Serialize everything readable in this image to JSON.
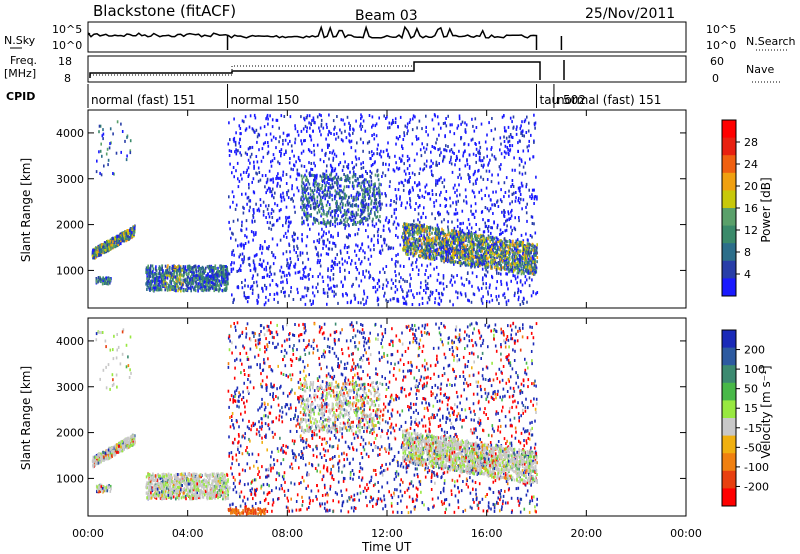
{
  "header": {
    "station": "Blackstone (fitACF)",
    "beam": "Beam 03",
    "date": "25/Nov/2011"
  },
  "params": {
    "nsky_label": "N.Sky",
    "nsearch_label": "N.Search",
    "freq_label": "Freq.",
    "freq_unit": "[MHz]",
    "nave_label": "Nave",
    "cpid_label": "CPID",
    "noise_ticks": [
      "10^5",
      "10^0"
    ],
    "freq_ticks": [
      "18",
      "8"
    ],
    "nave_ticks": [
      "60",
      "0"
    ]
  },
  "cpid_segments": [
    {
      "label": "normal (fast) 151",
      "start_hour": 0.0,
      "end_hour": 5.6
    },
    {
      "label": "normal 150",
      "start_hour": 5.6,
      "end_hour": 18.0
    },
    {
      "label": "tau 502",
      "start_hour": 18.0,
      "end_hour": 18.7
    },
    {
      "label": "normal (fast) 151",
      "start_hour": 18.7,
      "end_hour": 24.0
    }
  ],
  "power_colorbar": {
    "label": "Power [dB]",
    "ticks": [
      "28",
      "24",
      "20",
      "16",
      "12",
      "8",
      "4"
    ],
    "colors": [
      "#1a1aff",
      "#283ea8",
      "#2c6e8a",
      "#3a8a6a",
      "#5aa06a",
      "#c8c80a",
      "#f0a010",
      "#f06010",
      "#e82010",
      "#ff0000"
    ]
  },
  "velocity_colorbar": {
    "label": "Velocity [m s⁻¹]",
    "ticks": [
      "200",
      "100",
      "50",
      "15",
      "-15",
      "-50",
      "-100",
      "-200"
    ],
    "colors": [
      "#1a2ab8",
      "#2d5aa0",
      "#3c8a70",
      "#48b848",
      "#98e840",
      "#c8c8c8",
      "#f0b010",
      "#f08010",
      "#e84010",
      "#ff0000"
    ]
  },
  "chart_data": [
    {
      "type": "heatmap",
      "panel": "power",
      "ylabel": "Slant Range [km]",
      "xlabel": "Time UT",
      "x_ticks": [
        "00:00",
        "04:00",
        "08:00",
        "12:00",
        "16:00",
        "20:00",
        "00:00"
      ],
      "y_ticks": [
        "1000",
        "2000",
        "3000",
        "4000"
      ],
      "xlim_hours": [
        0,
        24
      ],
      "ylim_km": [
        180,
        4500
      ],
      "scatter_regions": [
        {
          "t0": 0.2,
          "t1": 1.8,
          "r0": 1250,
          "r1": 1800,
          "power": "mid"
        },
        {
          "t0": 2.2,
          "t1": 5.5,
          "r0": 500,
          "r1": 1100,
          "power": "low"
        },
        {
          "t0": 5.6,
          "t1": 18.0,
          "r0": 200,
          "r1": 4400,
          "power": "low-sparse"
        },
        {
          "t0": 12.5,
          "t1": 18.0,
          "r0": 800,
          "r1": 1800,
          "power": "mid"
        },
        {
          "t0": 7.5,
          "t1": 11.5,
          "r0": 2000,
          "r1": 3200,
          "power": "low"
        }
      ]
    },
    {
      "type": "heatmap",
      "panel": "velocity",
      "ylabel": "Slant Range [km]",
      "xlabel": "Time UT",
      "x_ticks": [
        "00:00",
        "04:00",
        "08:00",
        "12:00",
        "16:00",
        "20:00",
        "00:00"
      ],
      "y_ticks": [
        "1000",
        "2000",
        "3000",
        "4000"
      ],
      "xlim_hours": [
        0,
        24
      ],
      "ylim_km": [
        180,
        4500
      ]
    }
  ]
}
